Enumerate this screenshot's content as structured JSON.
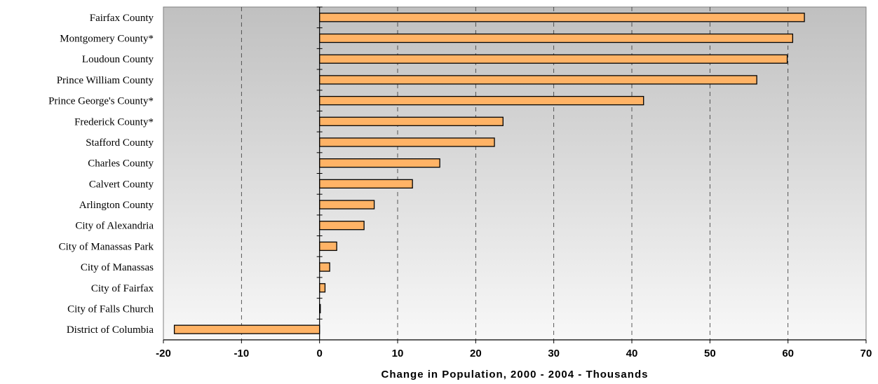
{
  "chart_data": {
    "type": "bar",
    "orientation": "horizontal",
    "title": "",
    "xlabel": "Change in Population, 2000 - 2004 - Thousands",
    "ylabel": "",
    "xlim": [
      -20,
      70
    ],
    "xticks": [
      -20,
      -10,
      0,
      10,
      20,
      30,
      40,
      50,
      60,
      70
    ],
    "xtick_labels": [
      "-20",
      "-10",
      "0",
      "10",
      "20",
      "30",
      "40",
      "50",
      "60",
      "70"
    ],
    "grid": "vertical dashed",
    "legend": "none",
    "categories": [
      "Fairfax County",
      "Montgomery County*",
      "Loudoun County",
      "Prince William County",
      "Prince George's County*",
      "Frederick County*",
      "Stafford County",
      "Charles County",
      "Calvert County",
      "Arlington County",
      "City of Alexandria",
      "City of Manassas Park",
      "City of Manassas",
      "City of Fairfax",
      "City of Falls Church",
      "District of Columbia"
    ],
    "values": [
      62.1,
      60.6,
      59.9,
      56.0,
      41.5,
      23.5,
      22.4,
      15.4,
      11.9,
      7.0,
      5.7,
      2.2,
      1.3,
      0.7,
      0.1,
      -18.6
    ],
    "colors": {
      "bar_fill": "#ffb366",
      "bar_stroke": "#000000",
      "plot_bg_top": "#c0c0c0",
      "plot_bg_bottom": "#f8f8f8",
      "grid": "#333333"
    }
  }
}
